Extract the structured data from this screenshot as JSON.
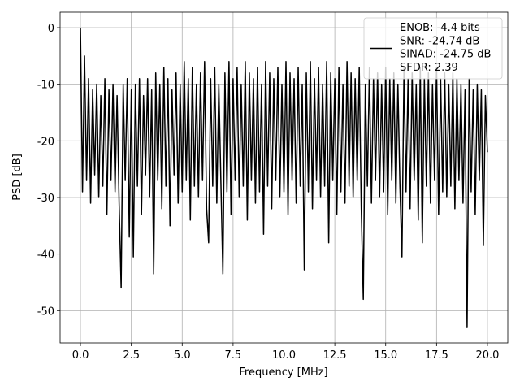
{
  "chart_data": {
    "type": "line",
    "xlabel": "Frequency [MHz]",
    "ylabel": "PSD [dB]",
    "x": [
      0,
      0.1,
      0.2,
      0.3,
      0.4,
      0.5,
      0.6,
      0.7,
      0.8,
      0.9,
      1,
      1.1,
      1.2,
      1.3,
      1.4,
      1.5,
      1.6,
      1.7,
      1.8,
      1.9,
      2,
      2.1,
      2.2,
      2.3,
      2.4,
      2.5,
      2.6,
      2.7,
      2.8,
      2.9,
      3,
      3.1,
      3.2,
      3.3,
      3.4,
      3.5,
      3.6,
      3.7,
      3.8,
      3.9,
      4,
      4.1,
      4.2,
      4.3,
      4.4,
      4.5,
      4.6,
      4.7,
      4.8,
      4.9,
      5,
      5.1,
      5.2,
      5.3,
      5.4,
      5.5,
      5.6,
      5.7,
      5.8,
      5.9,
      6,
      6.1,
      6.2,
      6.3,
      6.4,
      6.5,
      6.6,
      6.7,
      6.8,
      6.9,
      7,
      7.1,
      7.2,
      7.3,
      7.4,
      7.5,
      7.6,
      7.7,
      7.8,
      7.9,
      8,
      8.1,
      8.2,
      8.3,
      8.4,
      8.5,
      8.6,
      8.7,
      8.8,
      8.9,
      9,
      9.1,
      9.2,
      9.3,
      9.4,
      9.5,
      9.6,
      9.7,
      9.8,
      9.9,
      10,
      10.1,
      10.2,
      10.3,
      10.4,
      10.5,
      10.6,
      10.7,
      10.8,
      10.9,
      11,
      11.1,
      11.2,
      11.3,
      11.4,
      11.5,
      11.6,
      11.7,
      11.8,
      11.9,
      12,
      12.1,
      12.2,
      12.3,
      12.4,
      12.5,
      12.6,
      12.7,
      12.8,
      12.9,
      13,
      13.1,
      13.2,
      13.3,
      13.4,
      13.5,
      13.6,
      13.7,
      13.8,
      13.9,
      14,
      14.1,
      14.2,
      14.3,
      14.4,
      14.5,
      14.6,
      14.7,
      14.8,
      14.9,
      15,
      15.1,
      15.2,
      15.3,
      15.4,
      15.5,
      15.6,
      15.7,
      15.8,
      15.9,
      16,
      16.1,
      16.2,
      16.3,
      16.4,
      16.5,
      16.6,
      16.7,
      16.8,
      16.9,
      17,
      17.1,
      17.2,
      17.3,
      17.4,
      17.5,
      17.6,
      17.7,
      17.8,
      17.9,
      18,
      18.1,
      18.2,
      18.3,
      18.4,
      18.5,
      18.6,
      18.7,
      18.8,
      18.9,
      19,
      19.1,
      19.2,
      19.3,
      19.4,
      19.5,
      19.6,
      19.7,
      19.8,
      19.9,
      20
    ],
    "series": [
      {
        "name": "ENOB: -4.4 bits\nSNR: -24.74 dB\nSINAD: -24.75 dB\nSFDR: 2.39",
        "color": "#000000",
        "values": [
          0,
          -29,
          -5,
          -27,
          -9,
          -31,
          -11,
          -26,
          -10,
          -30,
          -12,
          -28,
          -9,
          -33,
          -11,
          -27,
          -10,
          -29,
          -12,
          -31,
          -46,
          -10,
          -27,
          -9,
          -37,
          -11,
          -40.5,
          -10,
          -28,
          -9,
          -33,
          -12,
          -26,
          -9,
          -30,
          -11,
          -43.5,
          -8,
          -27,
          -10,
          -32,
          -7,
          -28,
          -9,
          -35,
          -11,
          -26,
          -8,
          -31,
          -10,
          -29,
          -6,
          -27,
          -9,
          -34,
          -7,
          -28,
          -10,
          -30,
          -8,
          -27,
          -6,
          -32,
          -38,
          -9,
          -28,
          -7,
          -31,
          -10,
          -27,
          -43.5,
          -8,
          -29,
          -6,
          -33,
          -9,
          -27,
          -7,
          -30,
          -10,
          -28,
          -6,
          -34,
          -8,
          -27,
          -9,
          -31,
          -7,
          -29,
          -10,
          -36.5,
          -6,
          -28,
          -8,
          -32,
          -9,
          -27,
          -7,
          -30,
          -10,
          -29,
          -6,
          -33,
          -8,
          -27,
          -9,
          -31,
          -7,
          -28,
          -10,
          -42.8,
          -8,
          -29,
          -6,
          -32,
          -9,
          -27,
          -7,
          -30,
          -10,
          -28,
          -6,
          -38,
          -8,
          -27,
          -9,
          -33,
          -7,
          -29,
          -10,
          -31,
          -6,
          -28,
          -8,
          -30,
          -9,
          -27,
          -7,
          -32,
          -48,
          -10,
          -28,
          -7,
          -31,
          -9,
          -27,
          -8,
          -30,
          -10,
          -29,
          -7,
          -33,
          -9,
          -27,
          -8,
          -31,
          -10,
          -28,
          -40.5,
          -7,
          -29,
          -9,
          -32,
          -8,
          -27,
          -10,
          -34,
          -7,
          -38,
          -9,
          -28,
          -8,
          -31,
          -10,
          -27,
          -7,
          -33,
          -9,
          -29,
          -8,
          -30,
          -10,
          -28,
          -8,
          -32,
          -9,
          -27,
          -10,
          -31,
          -11,
          -53,
          -9,
          -29,
          -11,
          -33,
          -10,
          -27,
          -11,
          -38.5,
          -12,
          -22
        ]
      }
    ],
    "xlim": [
      -1.0,
      21.0
    ],
    "ylim": [
      -55.7,
      2.73
    ],
    "xticks": [
      {
        "value": 0,
        "label": "0.0"
      },
      2.5,
      {
        "value": 5,
        "label": "5.0"
      },
      7.5,
      {
        "value": 10,
        "label": "10.0"
      },
      12.5,
      {
        "value": 15,
        "label": "15.0"
      },
      17.5,
      {
        "value": 20,
        "label": "20.0"
      }
    ],
    "yticks": [
      0,
      -10,
      -20,
      -30,
      -40,
      -50
    ],
    "grid": true,
    "legend": "upper right"
  }
}
